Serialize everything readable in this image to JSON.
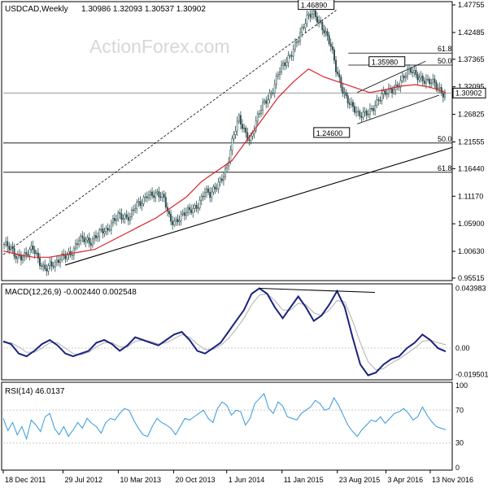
{
  "header": {
    "symbol": "USDCAD,Weekly",
    "ohlc": "1.30986 1.32093 1.30537 1.30902",
    "watermark": "ActionForex.com"
  },
  "colors": {
    "background": "#ffffff",
    "candle": "#2f4f4f",
    "moving_average": "#d9232a",
    "macd_line": "#1a237e",
    "signal_line": "#b0b0b0",
    "rsi_line": "#3399dd",
    "grid_dash": "#c8c8c8",
    "watermark": "#d7d7d7"
  },
  "chart_data": [
    {
      "type": "candlestick",
      "title": "USDCAD,Weekly",
      "y_ticks": [
        "1.47755",
        "1.42485",
        "1.37365",
        "1.32095",
        "1.26825",
        "1.21555",
        "1.16440",
        "1.11170",
        "1.05900",
        "1.00630",
        "0.95515"
      ],
      "ylim": [
        0.955,
        1.4776
      ],
      "x_ticks": [
        "18 Dec 2011",
        "29 Jul 2012",
        "10 Mar 2013",
        "20 Oct 2013",
        "1 Jun 2014",
        "11 Jan 2015",
        "23 Aug 2015",
        "3 Apr 2016",
        "13 Nov 2016"
      ],
      "x_tick_pos": [
        0,
        0.135,
        0.26,
        0.385,
        0.505,
        0.63,
        0.755,
        0.865,
        0.965
      ],
      "current_price": "1.30902",
      "ma_values": [
        1.007,
        1.0,
        0.995,
        0.995,
        1.0,
        1.005,
        1.01,
        1.025,
        1.04,
        1.055,
        1.07,
        1.09,
        1.11,
        1.14,
        1.16,
        1.18,
        1.22,
        1.26,
        1.3,
        1.33,
        1.355,
        1.34,
        1.33,
        1.32,
        1.31,
        1.315,
        1.322,
        1.325,
        1.32,
        1.31
      ],
      "close_path": [
        1.02,
        1.01,
        0.995,
        1.0,
        1.005,
        1.01,
        0.985,
        0.975,
        0.985,
        0.98,
        0.99,
        1.0,
        1.01,
        1.03,
        1.025,
        1.02,
        1.04,
        1.05,
        1.04,
        1.06,
        1.08,
        1.075,
        1.07,
        1.09,
        1.1,
        1.12,
        1.115,
        1.11,
        1.105,
        1.07,
        1.065,
        1.07,
        1.08,
        1.09,
        1.1,
        1.12,
        1.11,
        1.13,
        1.15,
        1.17,
        1.22,
        1.26,
        1.24,
        1.22,
        1.25,
        1.28,
        1.3,
        1.32,
        1.35,
        1.36,
        1.38,
        1.41,
        1.43,
        1.45,
        1.46,
        1.45,
        1.43,
        1.4,
        1.35,
        1.32,
        1.3,
        1.28,
        1.26,
        1.27,
        1.28,
        1.29,
        1.3,
        1.31,
        1.32,
        1.33,
        1.34,
        1.35,
        1.345,
        1.34,
        1.33,
        1.325,
        1.315,
        1.309
      ],
      "levels": [
        {
          "label": "61.8",
          "value": 1.3855
        },
        {
          "label": "50.0",
          "value": 1.3625
        },
        {
          "label": "50.0",
          "value": 1.2135
        },
        {
          "label": "61.8",
          "value": 1.1575
        }
      ],
      "pivot_labels": [
        {
          "text": "1.46890",
          "x": 0.755,
          "value": 1.4689
        },
        {
          "text": "1.35980",
          "x": 0.915,
          "value": 1.3598
        },
        {
          "text": "1.24600",
          "x": 0.79,
          "value": 1.246
        }
      ]
    },
    {
      "type": "line",
      "title": "MACD(12,26,9) -0.002440 0.002548",
      "y_ticks": [
        "0.043983",
        "0.00",
        "-0.019501"
      ],
      "ylim": [
        -0.0215,
        0.0455
      ],
      "series": [
        {
          "name": "MACD",
          "values": [
            0.005,
            0.003,
            -0.004,
            -0.006,
            -0.002,
            0.003,
            0.006,
            0.002,
            -0.004,
            -0.006,
            -0.004,
            -0.002,
            0.004,
            0.006,
            0.003,
            -0.002,
            0.002,
            0.008,
            0.006,
            0.004,
            0.002,
            0.006,
            0.01,
            0.012,
            0.006,
            -0.002,
            -0.004,
            0.0,
            0.004,
            0.012,
            0.02,
            0.028,
            0.04,
            0.044,
            0.04,
            0.03,
            0.022,
            0.03,
            0.038,
            0.03,
            0.02,
            0.024,
            0.032,
            0.042,
            0.03,
            0.008,
            -0.012,
            -0.02,
            -0.018,
            -0.012,
            -0.008,
            -0.006,
            0.0,
            0.004,
            0.01,
            0.006,
            0.0,
            -0.0024
          ]
        },
        {
          "name": "Signal",
          "values": [
            0.004,
            0.004,
            0.001,
            -0.003,
            -0.003,
            0.0,
            0.004,
            0.004,
            0.0,
            -0.004,
            -0.005,
            -0.003,
            0.001,
            0.004,
            0.004,
            0.001,
            0.001,
            0.005,
            0.006,
            0.005,
            0.003,
            0.004,
            0.007,
            0.01,
            0.008,
            0.003,
            -0.001,
            -0.001,
            0.002,
            0.007,
            0.014,
            0.022,
            0.032,
            0.039,
            0.04,
            0.035,
            0.028,
            0.028,
            0.033,
            0.032,
            0.026,
            0.024,
            0.028,
            0.035,
            0.034,
            0.02,
            0.004,
            -0.01,
            -0.016,
            -0.015,
            -0.011,
            -0.008,
            -0.004,
            0.0,
            0.005,
            0.006,
            0.004,
            0.0025
          ]
        }
      ],
      "trendline": [
        [
          0.58,
          0.044
        ],
        [
          0.84,
          0.041
        ]
      ]
    },
    {
      "type": "line",
      "title": "RSI(14) 46.0137",
      "y_ticks": [
        "100",
        "70",
        "30",
        "0"
      ],
      "ylim": [
        0,
        100
      ],
      "series": [
        {
          "name": "RSI",
          "values": [
            60,
            45,
            55,
            40,
            50,
            35,
            58,
            52,
            44,
            62,
            66,
            48,
            40,
            50,
            38,
            46,
            55,
            48,
            60,
            54,
            50,
            42,
            55,
            60,
            58,
            66,
            72,
            70,
            58,
            48,
            40,
            38,
            50,
            60,
            55,
            52,
            48,
            40,
            50,
            60,
            58,
            62,
            66,
            70,
            60,
            55,
            72,
            80,
            76,
            64,
            70,
            68,
            52,
            60,
            78,
            84,
            90,
            72,
            66,
            80,
            75,
            62,
            60,
            58,
            66,
            70,
            74,
            82,
            78,
            70,
            72,
            85,
            76,
            64,
            52,
            44,
            38,
            46,
            52,
            58,
            56,
            62,
            54,
            60,
            66,
            68,
            72,
            66,
            58,
            62,
            74,
            64,
            56,
            50,
            48,
            46
          ]
        }
      ]
    }
  ]
}
